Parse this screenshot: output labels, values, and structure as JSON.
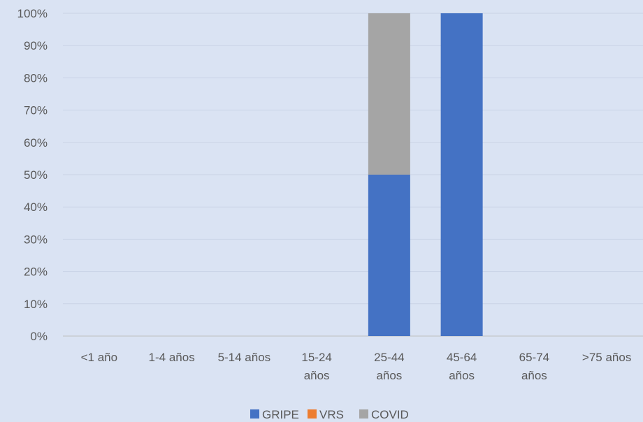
{
  "chart_data": {
    "type": "bar",
    "stacked": true,
    "categories": [
      [
        "<1 año"
      ],
      [
        "1-4 años"
      ],
      [
        "5-14 años"
      ],
      [
        "15-24",
        "años"
      ],
      [
        "25-44",
        "años"
      ],
      [
        "45-64",
        "años"
      ],
      [
        "65-74",
        "años"
      ],
      [
        ">75 años"
      ]
    ],
    "series": [
      {
        "name": "GRIPE",
        "color": "#4472c4",
        "values": [
          0,
          0,
          0,
          0,
          50,
          100,
          0,
          0
        ]
      },
      {
        "name": "VRS",
        "color": "#ed7d31",
        "values": [
          0,
          0,
          0,
          0,
          0,
          0,
          0,
          0
        ]
      },
      {
        "name": "COVID",
        "color": "#a5a5a5",
        "values": [
          0,
          0,
          0,
          0,
          50,
          0,
          0,
          0
        ]
      }
    ],
    "yticks": [
      "0%",
      "10%",
      "20%",
      "30%",
      "40%",
      "50%",
      "60%",
      "70%",
      "80%",
      "90%",
      "100%"
    ],
    "ylim": [
      0,
      100
    ],
    "grid": true,
    "legend_position": "bottom",
    "title": "",
    "xlabel": "",
    "ylabel": ""
  }
}
